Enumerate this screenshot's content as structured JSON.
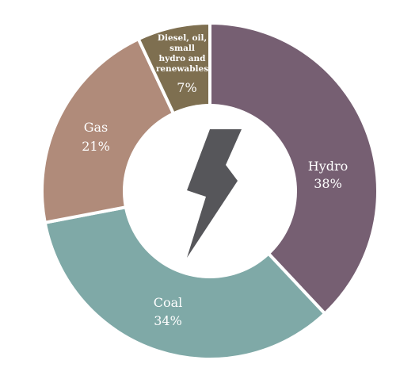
{
  "chart_data": {
    "type": "pie",
    "title": "",
    "center_icon": "lightning-bolt-icon",
    "slices": [
      {
        "label": "Hydro",
        "value": 38,
        "value_label": "38%",
        "color": "#765f72"
      },
      {
        "label": "Coal",
        "value": 34,
        "value_label": "34%",
        "color": "#7fa9a7"
      },
      {
        "label": "Gas",
        "value": 21,
        "value_label": "21%",
        "color": "#b08b7a"
      },
      {
        "label": "Diesel, oil, small hydro and renewables",
        "value": 7,
        "value_label": "7%",
        "color": "#7e6f50"
      }
    ]
  },
  "colors": {
    "background": "#ffffff",
    "icon": "#56565a",
    "separator": "#ffffff"
  }
}
